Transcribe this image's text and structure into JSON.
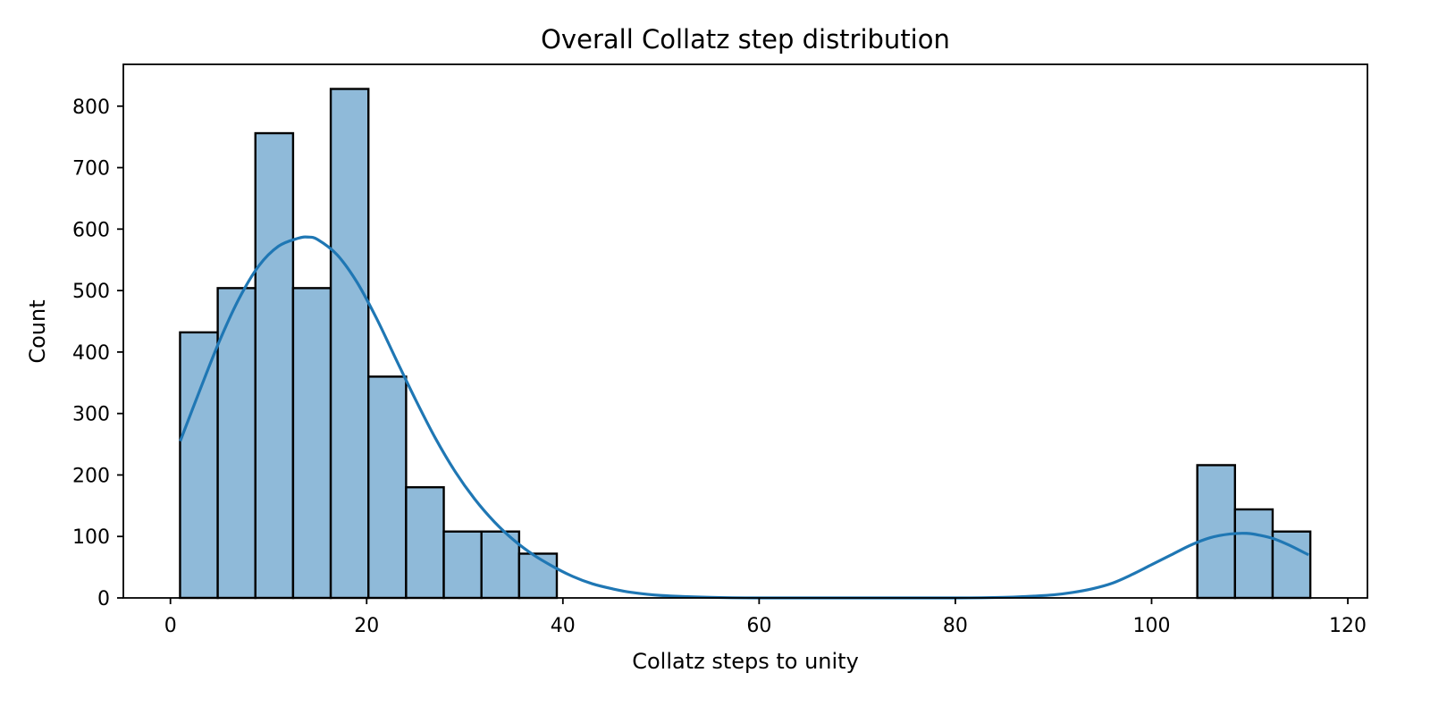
{
  "chart_data": {
    "type": "bar",
    "title": "Overall Collatz step distribution",
    "xlabel": "Collatz steps to unity",
    "ylabel": "Count",
    "xlim": [
      -4.8,
      122
    ],
    "ylim": [
      0,
      868
    ],
    "xticks": [
      0,
      20,
      40,
      60,
      80,
      100,
      120
    ],
    "yticks": [
      0,
      100,
      200,
      300,
      400,
      500,
      600,
      700,
      800
    ],
    "grid": false,
    "legend": "none",
    "colors": {
      "bar_fill": "#8fbad9",
      "bar_edge": "#000000",
      "kde_line": "#1f77b4"
    },
    "bins": [
      {
        "x0": 0.98,
        "x1": 4.82,
        "count": 432
      },
      {
        "x0": 4.82,
        "x1": 8.66,
        "count": 504
      },
      {
        "x0": 8.66,
        "x1": 12.5,
        "count": 756
      },
      {
        "x0": 12.5,
        "x1": 16.34,
        "count": 504
      },
      {
        "x0": 16.34,
        "x1": 20.18,
        "count": 828
      },
      {
        "x0": 20.18,
        "x1": 24.02,
        "count": 360
      },
      {
        "x0": 24.02,
        "x1": 27.86,
        "count": 180
      },
      {
        "x0": 27.86,
        "x1": 31.7,
        "count": 108
      },
      {
        "x0": 31.7,
        "x1": 35.54,
        "count": 108
      },
      {
        "x0": 35.54,
        "x1": 39.38,
        "count": 72
      },
      {
        "x0": 104.66,
        "x1": 108.5,
        "count": 216
      },
      {
        "x0": 108.5,
        "x1": 112.34,
        "count": 144
      },
      {
        "x0": 112.34,
        "x1": 116.18,
        "count": 108
      }
    ],
    "kde": {
      "x": [
        1,
        3,
        5,
        7,
        9,
        11,
        13,
        14,
        15,
        17,
        19,
        21,
        23,
        25,
        27,
        29,
        31,
        33,
        35,
        37,
        39,
        41,
        43,
        45,
        47,
        50,
        55,
        60,
        70,
        80,
        85,
        88,
        90,
        92,
        94,
        96,
        98,
        100,
        102,
        104,
        106,
        108,
        109.7,
        111,
        112.5,
        114,
        116
      ],
      "y": [
        255,
        338,
        418,
        487,
        540,
        572,
        585,
        587,
        583,
        558,
        514,
        455,
        388,
        322,
        260,
        206,
        161,
        124,
        94,
        70,
        51,
        35,
        23,
        15,
        9,
        4,
        1,
        0,
        0,
        0,
        1,
        3,
        5,
        9,
        15,
        24,
        38,
        54,
        70,
        86,
        98,
        104,
        105,
        102,
        96,
        86,
        70
      ]
    }
  }
}
